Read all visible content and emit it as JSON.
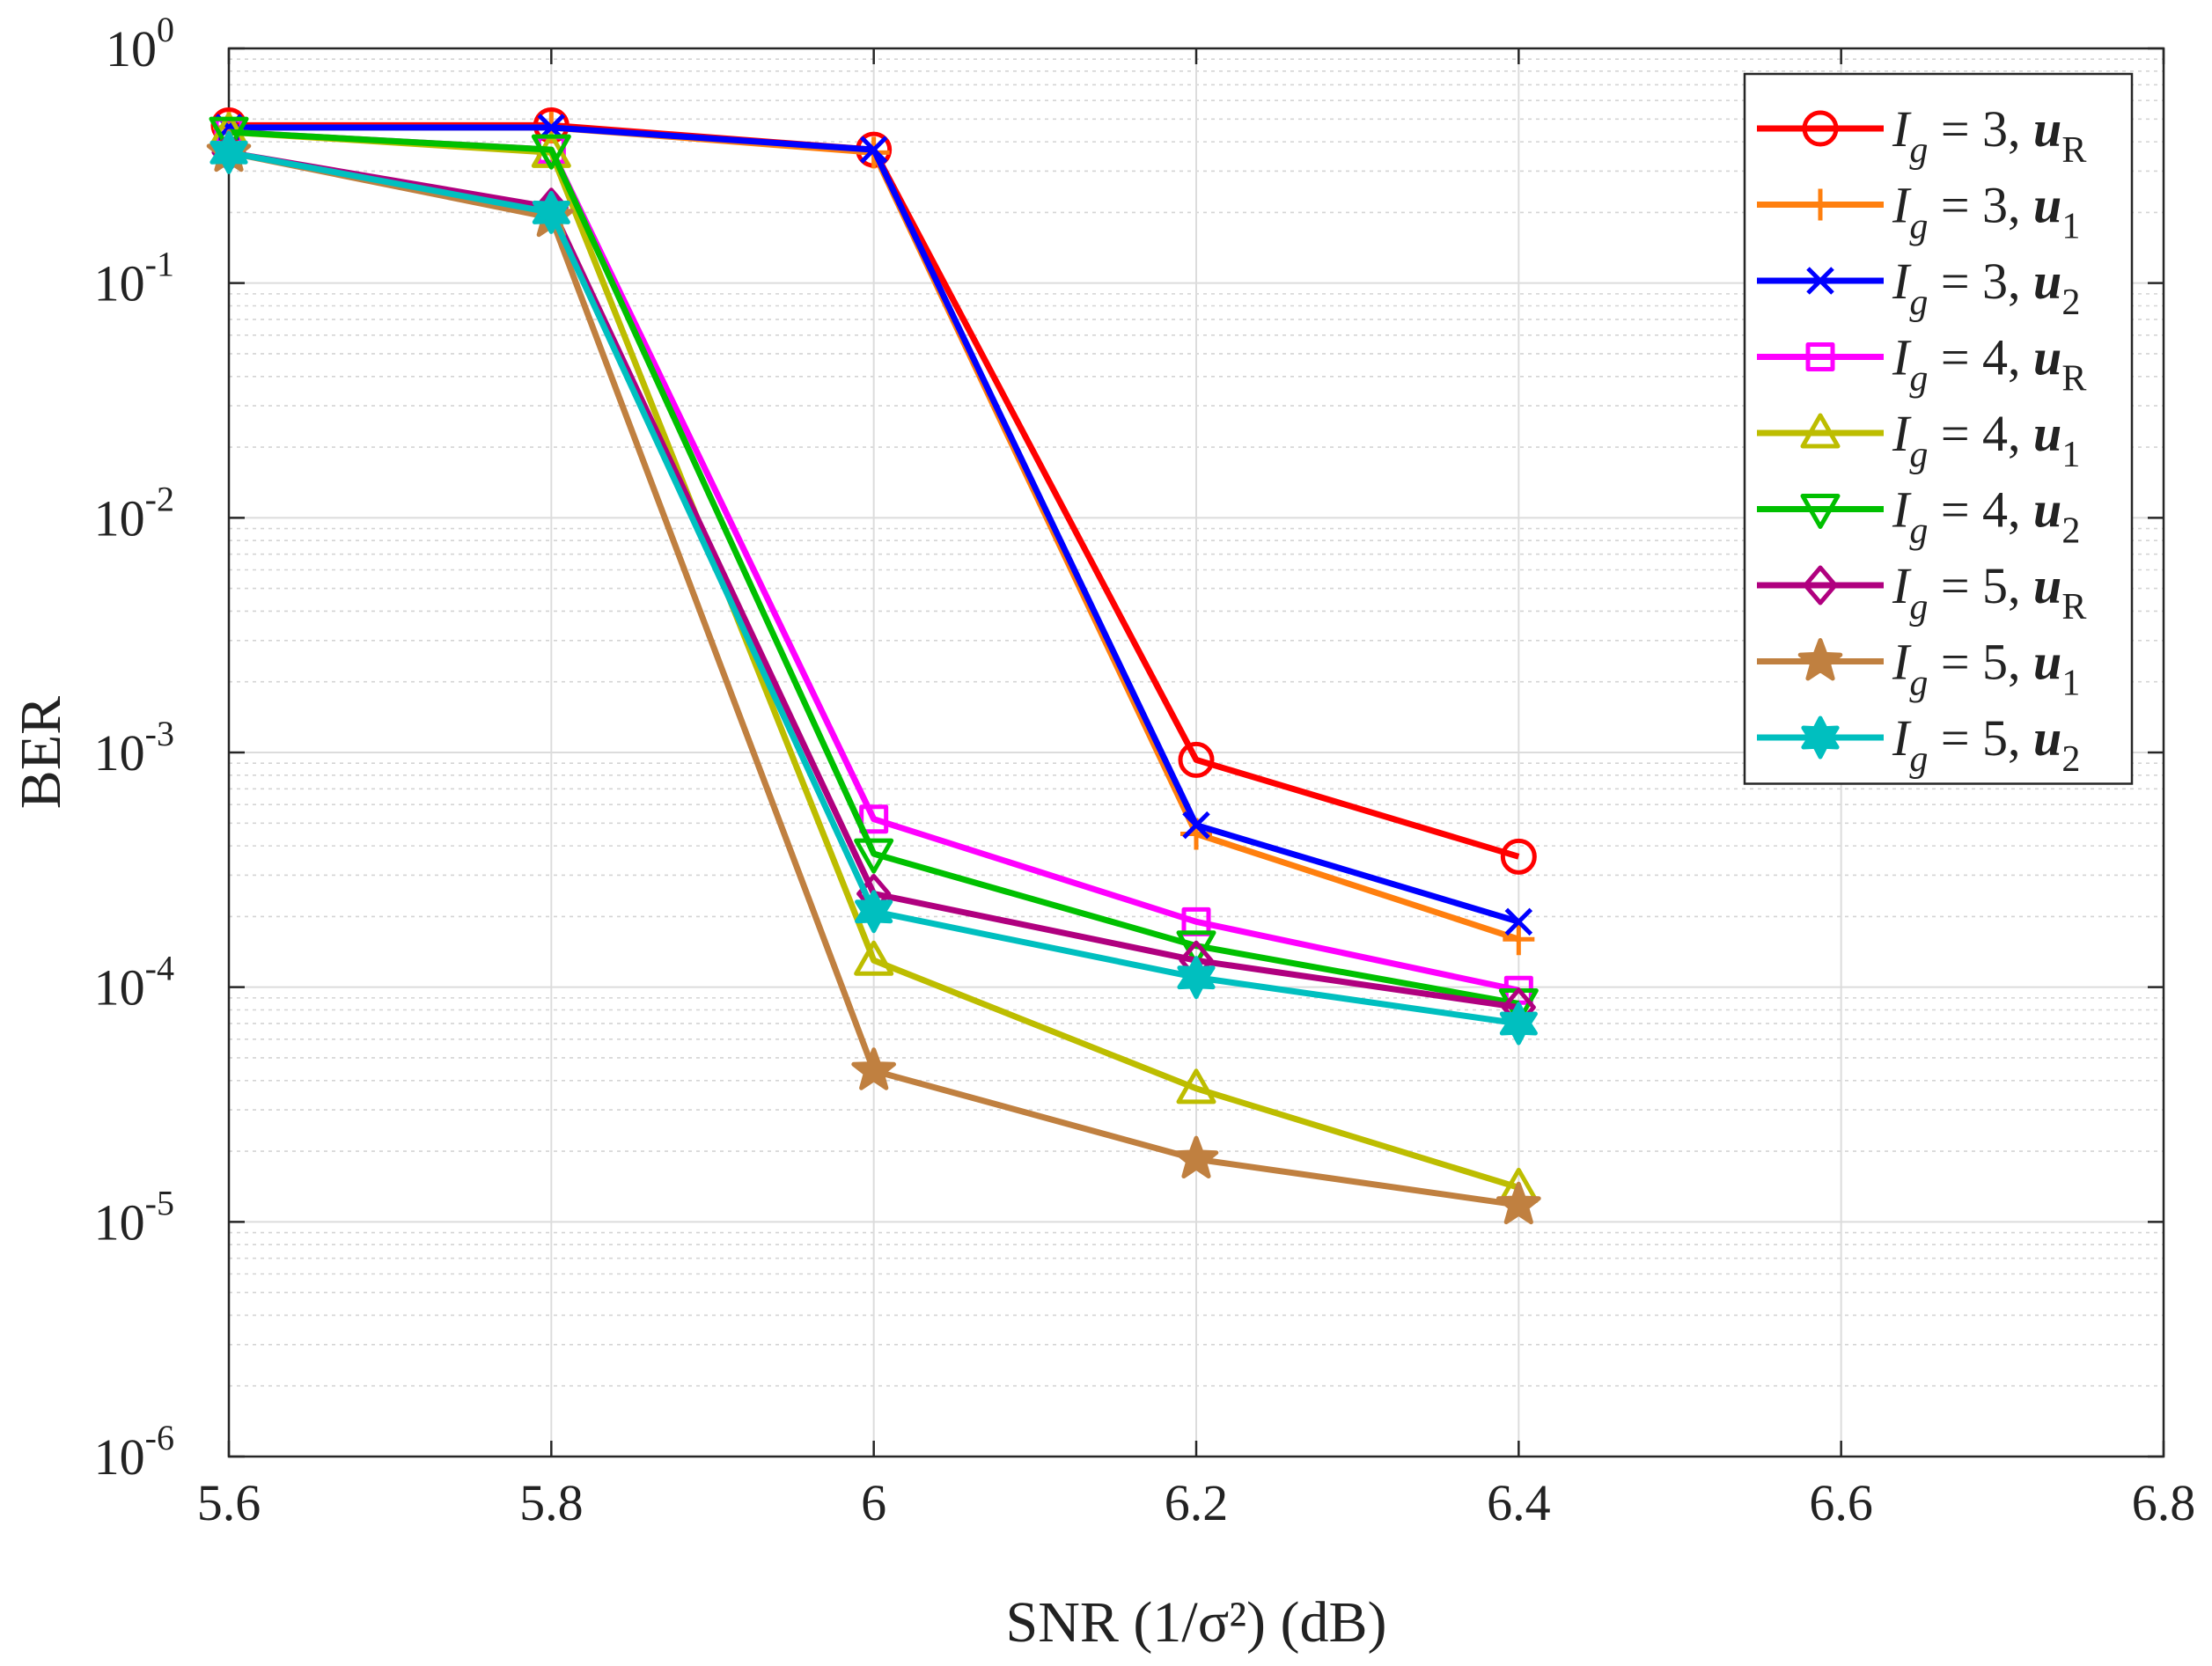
{
  "chart_data": {
    "type": "line",
    "title": "",
    "xlabel": "SNR (1/σ²) (dB)",
    "ylabel": "BER",
    "xscale": "linear",
    "yscale": "log",
    "xlim": [
      5.6,
      6.8
    ],
    "ylim": [
      1e-06,
      1
    ],
    "grid": true,
    "minor_grid": true,
    "legend_position": "top-right",
    "x": [
      5.6,
      5.8,
      6.0,
      6.2,
      6.4
    ],
    "x_ticks": [
      5.6,
      5.8,
      6.0,
      6.2,
      6.4,
      6.6,
      6.8
    ],
    "x_tick_labels": [
      "5.6",
      "5.8",
      "6",
      "6.2",
      "6.4",
      "6.6",
      "6.8"
    ],
    "y_ticks": [
      {
        "base": "10",
        "exp": "0"
      },
      {
        "base": "10",
        "exp": "-1"
      },
      {
        "base": "10",
        "exp": "-2"
      },
      {
        "base": "10",
        "exp": "-3"
      },
      {
        "base": "10",
        "exp": "-4"
      },
      {
        "base": "10",
        "exp": "-5"
      },
      {
        "base": "10",
        "exp": "-6"
      }
    ],
    "series": [
      {
        "name": "Ig = 3, uR",
        "label": {
          "i": "I",
          "g": "g",
          "eq": " = 3, ",
          "u": "u",
          "sub": "R",
          "sub_bold": false
        },
        "color": "#ff0000",
        "marker": "circle",
        "values": [
          0.47,
          0.47,
          0.37,
          0.00093,
          0.00036
        ]
      },
      {
        "name": "Ig = 3, u1",
        "label": {
          "i": "I",
          "g": "g",
          "eq": " = 3, ",
          "u": "u",
          "sub": "1",
          "sub_bold": false
        },
        "color": "#ff7f0e",
        "marker": "plus",
        "values": [
          0.46,
          0.46,
          0.36,
          0.00045,
          0.00016
        ]
      },
      {
        "name": "Ig = 3, u2",
        "label": {
          "i": "I",
          "g": "g",
          "eq": " = 3, ",
          "u": "u",
          "sub": "2",
          "sub_bold": false
        },
        "color": "#0000ff",
        "marker": "x",
        "values": [
          0.46,
          0.46,
          0.37,
          0.00049,
          0.00019
        ]
      },
      {
        "name": "Ig = 4, uR",
        "label": {
          "i": "I",
          "g": "g",
          "eq": " = 4, ",
          "u": "u",
          "sub": "R",
          "sub_bold": false
        },
        "color": "#ff00ff",
        "marker": "square",
        "values": [
          0.44,
          0.37,
          0.00052,
          0.00019,
          9.7e-05
        ]
      },
      {
        "name": "Ig = 4, u1",
        "label": {
          "i": "I",
          "g": "g",
          "eq": " = 4, ",
          "u": "u",
          "sub": "1",
          "sub_bold": false
        },
        "color": "#bdbd00",
        "marker": "triangle-up",
        "values": [
          0.44,
          0.36,
          0.00013,
          3.7e-05,
          1.4e-05
        ]
      },
      {
        "name": "Ig = 4, u2",
        "label": {
          "i": "I",
          "g": "g",
          "eq": " = 4, ",
          "u": "u",
          "sub": "2",
          "sub_bold": false
        },
        "color": "#00c000",
        "marker": "triangle-down",
        "values": [
          0.44,
          0.37,
          0.00037,
          0.00015,
          8.5e-05
        ]
      },
      {
        "name": "Ig = 5, uR",
        "label": {
          "i": "I",
          "g": "g",
          "eq": " = 5, ",
          "u": "u",
          "sub": "R",
          "sub_bold": false
        },
        "color": "#b0007f",
        "marker": "diamond",
        "values": [
          0.36,
          0.21,
          0.00025,
          0.00013,
          8.2e-05
        ]
      },
      {
        "name": "Ig = 5, u1",
        "label": {
          "i": "I",
          "g": "g",
          "eq": " = 5, ",
          "u": "u",
          "sub": "1",
          "sub_bold": false
        },
        "color": "#c08040",
        "marker": "pentagram",
        "values": [
          0.36,
          0.19,
          4.4e-05,
          1.85e-05,
          1.18e-05
        ]
      },
      {
        "name": "Ig = 5, u2",
        "label": {
          "i": "I",
          "g": "g",
          "eq": " = 5, ",
          "u": "u",
          "sub": "2",
          "sub_bold": false
        },
        "color": "#00bfbf",
        "marker": "hexagram",
        "values": [
          0.36,
          0.2,
          0.00021,
          0.00011,
          7e-05
        ]
      }
    ]
  }
}
